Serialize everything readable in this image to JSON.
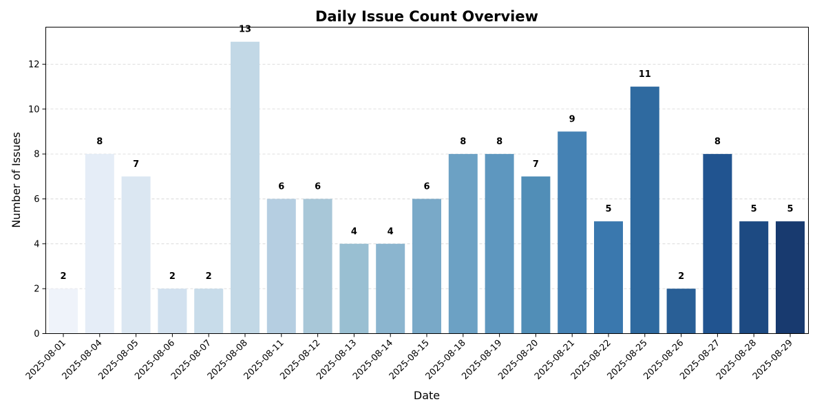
{
  "chart_data": {
    "type": "bar",
    "title": "Daily Issue Count Overview",
    "xlabel": "Date",
    "ylabel": "Number of Issues",
    "categories": [
      "2025-08-01",
      "2025-08-04",
      "2025-08-05",
      "2025-08-06",
      "2025-08-07",
      "2025-08-08",
      "2025-08-11",
      "2025-08-12",
      "2025-08-13",
      "2025-08-14",
      "2025-08-15",
      "2025-08-18",
      "2025-08-19",
      "2025-08-20",
      "2025-08-21",
      "2025-08-22",
      "2025-08-25",
      "2025-08-26",
      "2025-08-27",
      "2025-08-28",
      "2025-08-29"
    ],
    "values": [
      2,
      8,
      7,
      2,
      2,
      13,
      6,
      6,
      4,
      4,
      6,
      8,
      8,
      7,
      9,
      5,
      11,
      2,
      8,
      5,
      5
    ],
    "colors": [
      "#eff3fa",
      "#e5edf7",
      "#dbe7f2",
      "#d2e1ef",
      "#c8dcea",
      "#c2d8e6",
      "#b5cee1",
      "#a8c7d8",
      "#99bfd2",
      "#8bb5cf",
      "#79a9c8",
      "#6ca1c4",
      "#5e97bf",
      "#518eb7",
      "#4582b4",
      "#3a78ae",
      "#2f6aa0",
      "#295f96",
      "#215490",
      "#1d4a82",
      "#183a6f"
    ],
    "yticks": [
      0,
      2,
      4,
      6,
      8,
      10,
      12
    ],
    "ylim": [
      0,
      13.65
    ],
    "grid": "y-dashed",
    "legend": "none"
  }
}
